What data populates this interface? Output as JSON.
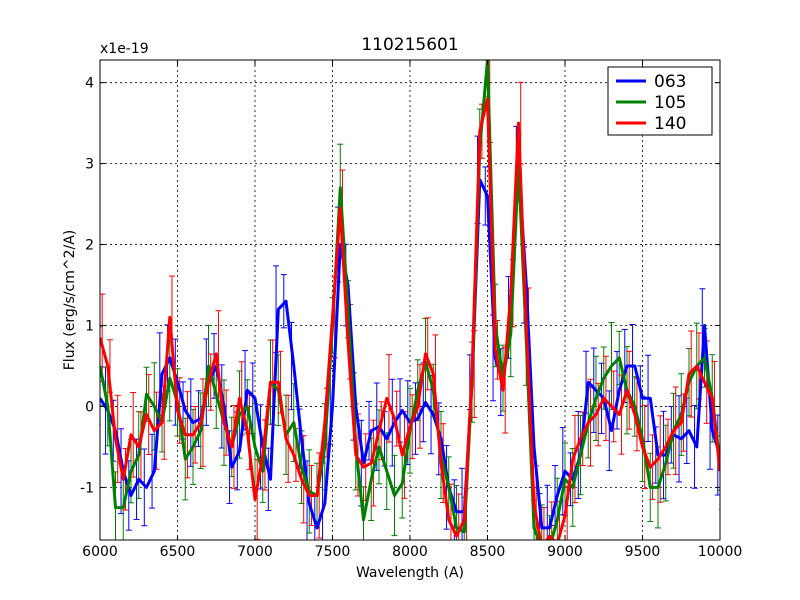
{
  "chart_data": {
    "type": "line",
    "title": "110215601",
    "xlabel": "Wavelength (A)",
    "ylabel": "Flux (erg/s/cm^2/A)",
    "y_multiplier": "x1e-19",
    "xlim": [
      6000,
      10000
    ],
    "ylim": [
      -1.65,
      4.28
    ],
    "xticks": [
      6000,
      6500,
      7000,
      7500,
      8000,
      8500,
      9000,
      9500,
      10000
    ],
    "yticks": [
      -1,
      0,
      1,
      2,
      3,
      4
    ],
    "grid": true,
    "legend_position": "top-right",
    "errorbars": true,
    "series": [
      {
        "name": "063",
        "color": "#0000ff",
        "points": [
          [
            6000,
            0.1
          ],
          [
            6050,
            -0.05
          ],
          [
            6100,
            -0.3
          ],
          [
            6150,
            -0.8
          ],
          [
            6200,
            -1.1
          ],
          [
            6250,
            -0.9
          ],
          [
            6300,
            -1.0
          ],
          [
            6350,
            -0.8
          ],
          [
            6400,
            0.4
          ],
          [
            6450,
            0.6
          ],
          [
            6500,
            0.3
          ],
          [
            6550,
            -0.05
          ],
          [
            6600,
            -0.2
          ],
          [
            6650,
            -0.15
          ],
          [
            6700,
            0.3
          ],
          [
            6750,
            0.5
          ],
          [
            6800,
            0.0
          ],
          [
            6850,
            -0.75
          ],
          [
            6900,
            -0.55
          ],
          [
            6950,
            0.2
          ],
          [
            7000,
            0.1
          ],
          [
            7050,
            -0.5
          ],
          [
            7100,
            -0.9
          ],
          [
            7150,
            1.2
          ],
          [
            7200,
            1.3
          ],
          [
            7250,
            0.5
          ],
          [
            7300,
            -0.4
          ],
          [
            7350,
            -1.2
          ],
          [
            7400,
            -1.5
          ],
          [
            7450,
            -1.2
          ],
          [
            7500,
            0.0
          ],
          [
            7550,
            2.0
          ],
          [
            7600,
            1.5
          ],
          [
            7650,
            0.0
          ],
          [
            7700,
            -0.7
          ],
          [
            7750,
            -0.3
          ],
          [
            7800,
            -0.25
          ],
          [
            7850,
            -0.4
          ],
          [
            7900,
            -0.2
          ],
          [
            7950,
            -0.05
          ],
          [
            8000,
            -0.2
          ],
          [
            8050,
            -0.15
          ],
          [
            8100,
            0.05
          ],
          [
            8150,
            -0.1
          ],
          [
            8200,
            -0.4
          ],
          [
            8250,
            -1.0
          ],
          [
            8300,
            -1.3
          ],
          [
            8350,
            -1.3
          ],
          [
            8400,
            0.3
          ],
          [
            8450,
            2.8
          ],
          [
            8500,
            2.6
          ],
          [
            8550,
            0.6
          ],
          [
            8600,
            0.3
          ],
          [
            8650,
            1.1
          ],
          [
            8700,
            3.0
          ],
          [
            8750,
            1.5
          ],
          [
            8800,
            -0.5
          ],
          [
            8850,
            -1.5
          ],
          [
            8900,
            -1.5
          ],
          [
            8950,
            -1.1
          ],
          [
            9000,
            -0.8
          ],
          [
            9050,
            -0.9
          ],
          [
            9100,
            -0.6
          ],
          [
            9150,
            0.3
          ],
          [
            9200,
            0.2
          ],
          [
            9250,
            0.1
          ],
          [
            9300,
            -0.3
          ],
          [
            9350,
            0.2
          ],
          [
            9400,
            0.5
          ],
          [
            9450,
            0.5
          ],
          [
            9500,
            0.1
          ],
          [
            9550,
            0.1
          ],
          [
            9600,
            -0.6
          ],
          [
            9650,
            -0.6
          ],
          [
            9700,
            -0.35
          ],
          [
            9750,
            -0.4
          ],
          [
            9800,
            -0.3
          ],
          [
            9850,
            -0.5
          ],
          [
            9900,
            1.0
          ],
          [
            9950,
            -0.3
          ],
          [
            10000,
            -0.6
          ]
        ]
      },
      {
        "name": "105",
        "color": "#008000",
        "points": [
          [
            6000,
            0.5
          ],
          [
            6050,
            0.0
          ],
          [
            6100,
            -1.25
          ],
          [
            6150,
            -1.25
          ],
          [
            6200,
            -0.8
          ],
          [
            6250,
            -0.6
          ],
          [
            6300,
            0.15
          ],
          [
            6350,
            0.0
          ],
          [
            6400,
            -0.2
          ],
          [
            6450,
            0.35
          ],
          [
            6500,
            0.05
          ],
          [
            6550,
            -0.65
          ],
          [
            6600,
            -0.5
          ],
          [
            6650,
            -0.3
          ],
          [
            6700,
            0.5
          ],
          [
            6750,
            0.15
          ],
          [
            6800,
            -0.2
          ],
          [
            6850,
            -0.5
          ],
          [
            6900,
            -0.1
          ],
          [
            6950,
            0.0
          ],
          [
            7000,
            -0.5
          ],
          [
            7050,
            -0.8
          ],
          [
            7100,
            0.3
          ],
          [
            7150,
            0.2
          ],
          [
            7200,
            -0.35
          ],
          [
            7250,
            -0.2
          ],
          [
            7300,
            -0.75
          ],
          [
            7350,
            -1.05
          ],
          [
            7400,
            -1.1
          ],
          [
            7450,
            -0.5
          ],
          [
            7500,
            1.0
          ],
          [
            7550,
            2.7
          ],
          [
            7600,
            1.2
          ],
          [
            7650,
            -0.5
          ],
          [
            7700,
            -1.4
          ],
          [
            7750,
            -0.9
          ],
          [
            7800,
            -0.5
          ],
          [
            7850,
            -0.8
          ],
          [
            7900,
            -1.1
          ],
          [
            7950,
            -0.95
          ],
          [
            8000,
            -0.3
          ],
          [
            8050,
            0.2
          ],
          [
            8100,
            0.55
          ],
          [
            8150,
            0.2
          ],
          [
            8200,
            -0.6
          ],
          [
            8250,
            -1.0
          ],
          [
            8300,
            -1.5
          ],
          [
            8350,
            -1.55
          ],
          [
            8400,
            0.3
          ],
          [
            8450,
            3.2
          ],
          [
            8500,
            4.28
          ],
          [
            8550,
            1.0
          ],
          [
            8600,
            0.35
          ],
          [
            8650,
            0.9
          ],
          [
            8700,
            3.0
          ],
          [
            8750,
            0.8
          ],
          [
            8800,
            -1.5
          ],
          [
            8850,
            -1.75
          ],
          [
            8900,
            -1.75
          ],
          [
            8950,
            -1.4
          ],
          [
            9000,
            -0.9
          ],
          [
            9050,
            -1.0
          ],
          [
            9100,
            -0.6
          ],
          [
            9150,
            -0.2
          ],
          [
            9200,
            0.1
          ],
          [
            9250,
            0.35
          ],
          [
            9300,
            0.5
          ],
          [
            9350,
            0.6
          ],
          [
            9400,
            0.2
          ],
          [
            9450,
            0.0
          ],
          [
            9500,
            -0.4
          ],
          [
            9550,
            -1.0
          ],
          [
            9600,
            -1.0
          ],
          [
            9650,
            -0.7
          ],
          [
            9700,
            -0.3
          ],
          [
            9750,
            -0.1
          ],
          [
            9800,
            0.3
          ],
          [
            9850,
            0.5
          ],
          [
            9900,
            0.6
          ],
          [
            9950,
            0.1
          ],
          [
            10000,
            -0.7
          ]
        ]
      },
      {
        "name": "140",
        "color": "#ff0000",
        "points": [
          [
            6000,
            0.85
          ],
          [
            6050,
            0.5
          ],
          [
            6100,
            -0.4
          ],
          [
            6150,
            -0.9
          ],
          [
            6200,
            -0.35
          ],
          [
            6250,
            -0.5
          ],
          [
            6300,
            -0.1
          ],
          [
            6350,
            -0.3
          ],
          [
            6400,
            -0.2
          ],
          [
            6450,
            1.1
          ],
          [
            6500,
            -0.05
          ],
          [
            6550,
            -0.35
          ],
          [
            6600,
            -0.35
          ],
          [
            6650,
            -0.2
          ],
          [
            6700,
            0.3
          ],
          [
            6750,
            0.65
          ],
          [
            6800,
            -0.2
          ],
          [
            6850,
            -0.5
          ],
          [
            6900,
            0.1
          ],
          [
            6950,
            -0.3
          ],
          [
            7000,
            -1.15
          ],
          [
            7050,
            -0.6
          ],
          [
            7100,
            0.3
          ],
          [
            7150,
            0.3
          ],
          [
            7200,
            -0.4
          ],
          [
            7250,
            -0.6
          ],
          [
            7300,
            -0.9
          ],
          [
            7350,
            -1.1
          ],
          [
            7400,
            -1.1
          ],
          [
            7450,
            -0.2
          ],
          [
            7500,
            1.1
          ],
          [
            7550,
            2.45
          ],
          [
            7600,
            0.8
          ],
          [
            7650,
            -0.6
          ],
          [
            7700,
            -0.75
          ],
          [
            7750,
            -0.7
          ],
          [
            7800,
            -0.3
          ],
          [
            7850,
            0.1
          ],
          [
            7900,
            -0.15
          ],
          [
            7950,
            -0.6
          ],
          [
            8000,
            -0.25
          ],
          [
            8050,
            0.0
          ],
          [
            8100,
            0.65
          ],
          [
            8150,
            0.4
          ],
          [
            8200,
            -0.7
          ],
          [
            8250,
            -1.4
          ],
          [
            8300,
            -1.6
          ],
          [
            8350,
            -1.4
          ],
          [
            8400,
            0.4
          ],
          [
            8450,
            3.4
          ],
          [
            8500,
            3.8
          ],
          [
            8550,
            0.7
          ],
          [
            8600,
            0.2
          ],
          [
            8650,
            1.4
          ],
          [
            8700,
            3.5
          ],
          [
            8750,
            1.0
          ],
          [
            8800,
            -1.2
          ],
          [
            8850,
            -1.75
          ],
          [
            8900,
            -1.6
          ],
          [
            8950,
            -1.7
          ],
          [
            9000,
            -1.35
          ],
          [
            9050,
            -0.65
          ],
          [
            9100,
            -0.4
          ],
          [
            9150,
            -0.2
          ],
          [
            9200,
            -0.1
          ],
          [
            9250,
            0.1
          ],
          [
            9300,
            0.0
          ],
          [
            9350,
            -0.1
          ],
          [
            9400,
            0.2
          ],
          [
            9450,
            -0.1
          ],
          [
            9500,
            -0.5
          ],
          [
            9550,
            -0.75
          ],
          [
            9600,
            -0.65
          ],
          [
            9650,
            -0.5
          ],
          [
            9700,
            -0.3
          ],
          [
            9750,
            -0.2
          ],
          [
            9800,
            0.4
          ],
          [
            9850,
            0.5
          ],
          [
            9900,
            0.3
          ],
          [
            9950,
            0.1
          ],
          [
            10000,
            -0.8
          ]
        ]
      }
    ]
  }
}
